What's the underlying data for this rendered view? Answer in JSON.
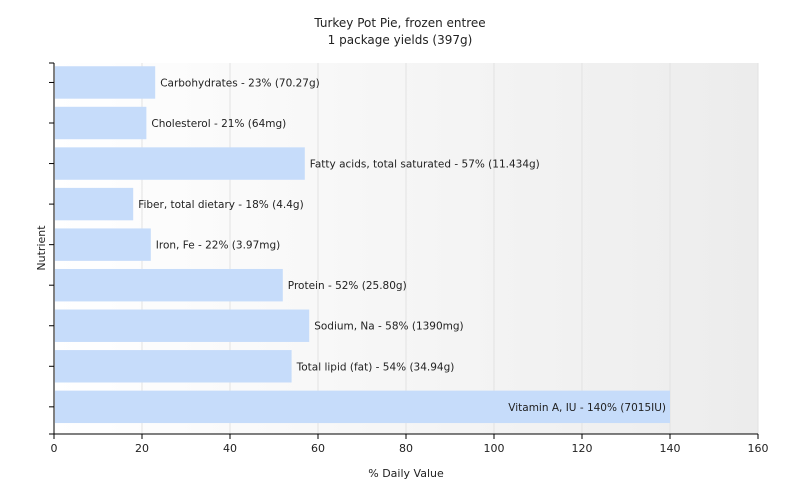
{
  "chart_data": {
    "type": "bar",
    "orientation": "horizontal",
    "title": "Turkey Pot Pie, frozen entree",
    "subtitle": "1 package yields (397g)",
    "xlabel": "% Daily Value",
    "ylabel": "Nutrient",
    "xlim": [
      0,
      160
    ],
    "xticks": [
      0,
      20,
      40,
      60,
      80,
      100,
      120,
      140,
      160
    ],
    "grid": true,
    "bar_color": "#c6dcfa",
    "categories": [
      "Carbohydrates",
      "Cholesterol",
      "Fatty acids, total saturated",
      "Fiber, total dietary",
      "Iron, Fe",
      "Protein",
      "Sodium, Na",
      "Total lipid (fat)",
      "Vitamin A, IU"
    ],
    "values": [
      23,
      21,
      57,
      18,
      22,
      52,
      58,
      54,
      140
    ],
    "labels": [
      "Carbohydrates - 23% (70.27g)",
      "Cholesterol - 21% (64mg)",
      "Fatty acids, total saturated - 57% (11.434g)",
      "Fiber, total dietary - 18% (4.4g)",
      "Iron, Fe - 22% (3.97mg)",
      "Protein - 52% (25.80g)",
      "Sodium, Na - 58% (1390mg)",
      "Total lipid (fat) - 54% (34.94g)",
      "Vitamin A, IU - 140% (7015IU)"
    ]
  }
}
